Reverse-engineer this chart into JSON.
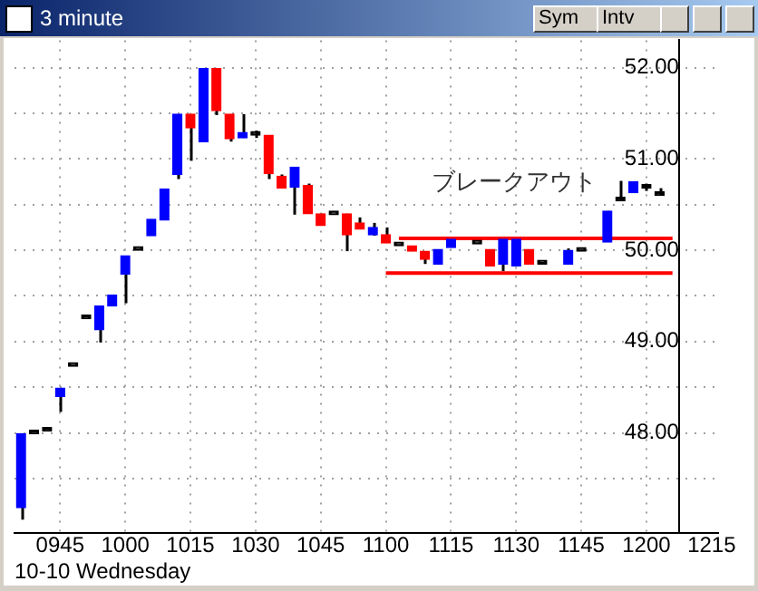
{
  "chart_data": {
    "type": "candlestick",
    "title": "3 minute",
    "xlabel": "10-10 Wednesday",
    "categories": [
      null,
      null,
      null,
      "0945",
      null,
      null,
      null,
      null,
      "1000",
      null,
      null,
      null,
      null,
      "1015",
      null,
      null,
      null,
      null,
      "1030",
      null,
      null,
      null,
      null,
      "1045",
      null,
      null,
      null,
      null,
      "1100",
      null,
      null,
      null,
      null,
      "1115",
      null,
      null,
      null,
      null,
      "1130",
      null,
      null,
      null,
      null,
      "1145",
      null,
      null,
      null,
      null,
      "1200",
      null,
      null,
      null,
      null,
      "1215"
    ],
    "ohlc": [
      [
        47.18,
        47.99,
        47.05,
        47.99
      ],
      [
        47.99,
        47.99,
        47.99,
        47.99
      ],
      [
        48.02,
        48.02,
        48.02,
        48.02
      ],
      [
        48.4,
        48.49,
        48.23,
        48.49
      ],
      [
        48.73,
        48.73,
        48.73,
        48.73
      ],
      [
        49.25,
        49.25,
        49.25,
        49.25
      ],
      [
        49.13,
        49.39,
        48.99,
        49.39
      ],
      [
        49.39,
        49.51,
        49.39,
        49.51
      ],
      [
        49.74,
        49.94,
        49.42,
        49.94
      ],
      [
        50.0,
        50.0,
        50.0,
        50.0
      ],
      [
        50.16,
        50.34,
        50.16,
        50.34
      ],
      [
        50.33,
        50.67,
        50.33,
        50.67
      ],
      [
        50.83,
        51.49,
        50.78,
        51.49
      ],
      [
        51.49,
        51.49,
        50.98,
        51.34
      ],
      [
        51.19,
        51.99,
        51.19,
        51.99
      ],
      [
        51.99,
        51.99,
        51.48,
        51.53
      ],
      [
        51.49,
        51.49,
        51.19,
        51.22
      ],
      [
        51.23,
        51.49,
        51.23,
        51.29
      ],
      [
        51.26,
        51.31,
        51.23,
        51.26
      ],
      [
        51.26,
        51.26,
        50.78,
        50.84
      ],
      [
        50.81,
        50.83,
        50.68,
        50.68
      ],
      [
        50.69,
        50.91,
        50.39,
        50.91
      ],
      [
        50.71,
        50.73,
        50.4,
        50.4
      ],
      [
        50.4,
        50.4,
        50.27,
        50.27
      ],
      [
        50.39,
        50.39,
        50.39,
        50.39
      ],
      [
        50.4,
        50.4,
        49.99,
        50.17
      ],
      [
        50.3,
        50.36,
        50.23,
        50.23
      ],
      [
        50.17,
        50.3,
        50.16,
        50.25
      ],
      [
        50.17,
        50.25,
        50.08,
        50.08
      ],
      [
        50.05,
        50.05,
        50.05,
        50.05
      ],
      [
        50.05,
        50.05,
        49.99,
        49.99
      ],
      [
        49.99,
        49.99,
        49.85,
        49.9
      ],
      [
        49.85,
        50.01,
        49.85,
        50.01
      ],
      [
        50.03,
        50.12,
        50.03,
        50.12
      ],
      null,
      [
        50.07,
        50.07,
        50.07,
        50.07
      ],
      [
        50.01,
        50.01,
        49.83,
        49.83
      ],
      [
        49.85,
        50.12,
        49.77,
        50.12
      ],
      [
        49.83,
        50.12,
        49.83,
        50.12
      ],
      [
        50.01,
        50.01,
        49.85,
        49.85
      ],
      [
        49.85,
        49.85,
        49.85,
        49.85
      ],
      null,
      [
        49.85,
        50.02,
        49.85,
        50.0
      ],
      [
        49.99,
        49.99,
        49.99,
        49.99
      ],
      null,
      [
        50.09,
        50.43,
        50.09,
        50.43
      ],
      [
        50.54,
        50.76,
        50.54,
        50.54
      ],
      [
        50.63,
        50.75,
        50.63,
        50.75
      ],
      [
        50.68,
        50.73,
        50.65,
        50.68
      ],
      [
        50.6,
        50.68,
        50.6,
        50.6
      ],
      null,
      null,
      null,
      null
    ],
    "colors": [
      "#0000ff",
      "#000000",
      "#000000",
      "#0000ff",
      "#000000",
      "#000000",
      "#0000ff",
      "#0000ff",
      "#0000ff",
      "#000000",
      "#0000ff",
      "#0000ff",
      "#0000ff",
      "#ff0000",
      "#0000ff",
      "#ff0000",
      "#ff0000",
      "#0000ff",
      "#000000",
      "#ff0000",
      "#ff0000",
      "#0000ff",
      "#ff0000",
      "#ff0000",
      "#000000",
      "#ff0000",
      "#ff0000",
      "#0000ff",
      "#ff0000",
      "#000000",
      "#ff0000",
      "#ff0000",
      "#0000ff",
      "#0000ff",
      null,
      "#000000",
      "#ff0000",
      "#0000ff",
      "#0000ff",
      "#ff0000",
      "#000000",
      null,
      "#0000ff",
      "#000000",
      null,
      "#0000ff",
      "#000000",
      "#0000ff",
      "#000000",
      "#000000",
      null,
      null,
      null,
      null
    ],
    "series": [
      {
        "type": "line",
        "color": "#ff0000",
        "values": [
          null,
          null,
          null,
          null,
          null,
          null,
          null,
          null,
          null,
          null,
          null,
          null,
          null,
          null,
          null,
          null,
          null,
          null,
          null,
          null,
          null,
          null,
          null,
          null,
          null,
          null,
          null,
          null,
          null,
          50.13,
          50.13,
          50.13,
          50.13,
          50.13,
          50.13,
          50.13,
          50.13,
          50.13,
          50.13,
          50.13,
          50.13,
          50.13,
          50.13,
          50.13,
          50.13,
          50.13,
          50.13,
          50.13,
          50.13,
          50.13,
          50.13,
          null,
          null,
          null
        ]
      },
      {
        "type": "line",
        "color": "#ff0000",
        "values": [
          null,
          null,
          null,
          null,
          null,
          null,
          null,
          null,
          null,
          null,
          null,
          null,
          null,
          null,
          null,
          null,
          null,
          null,
          null,
          null,
          null,
          null,
          null,
          null,
          null,
          null,
          null,
          null,
          49.75,
          49.75,
          49.75,
          49.75,
          49.75,
          49.75,
          49.75,
          49.75,
          49.75,
          49.75,
          49.75,
          49.75,
          49.75,
          49.75,
          49.75,
          49.75,
          49.75,
          49.75,
          49.75,
          49.75,
          49.75,
          49.75,
          49.75,
          null,
          null,
          null
        ]
      }
    ],
    "ylim": [
      46.9,
      52.3
    ],
    "yticks": [
      {
        "value": 47.5,
        "label": null
      },
      {
        "value": 48,
        "label": "48.00"
      },
      {
        "value": 48.5,
        "label": null
      },
      {
        "value": 49,
        "label": "49.00"
      },
      {
        "value": 49.5,
        "label": null
      },
      {
        "value": 50,
        "label": "50.00"
      },
      {
        "value": 50.5,
        "label": null
      },
      {
        "value": 51,
        "label": "51.00"
      },
      {
        "value": 51.5,
        "label": null
      },
      {
        "value": 52,
        "label": "52.00"
      }
    ],
    "grid": true,
    "annotations": [
      "ブレークアウト",
      "Sym",
      "Intv"
    ]
  }
}
